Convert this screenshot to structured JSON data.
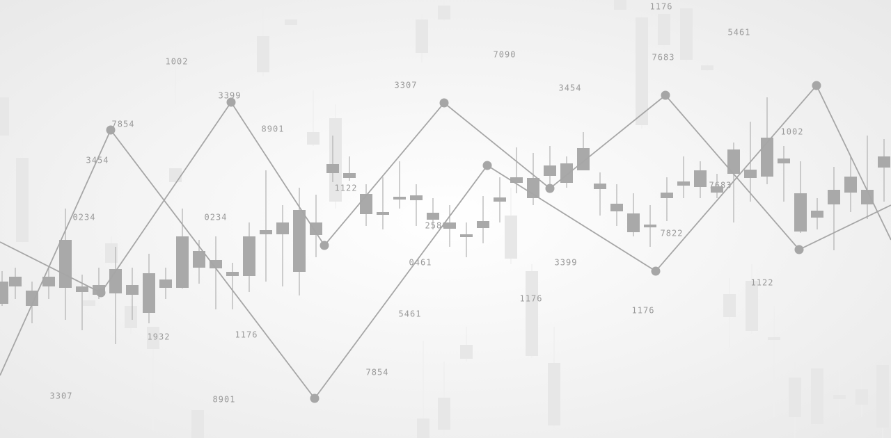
{
  "labels": [
    "1176",
    "5461",
    "7090",
    "7683",
    "1002",
    "3307",
    "3454",
    "3399",
    "7854",
    "8901",
    "1002",
    "3454",
    "1122",
    "7683",
    "0234",
    "0234",
    "2580",
    "7822",
    "0461",
    "3399",
    "1122",
    "1176",
    "1176",
    "5461",
    "1932",
    "1176",
    "7854",
    "3307",
    "8901"
  ]
}
